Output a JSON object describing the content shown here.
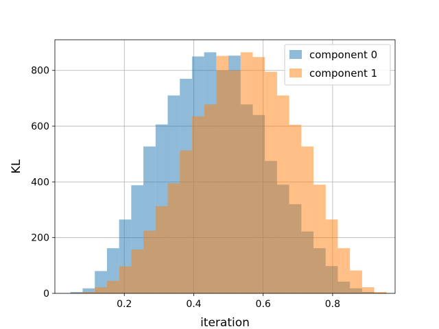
{
  "chart_data": {
    "type": "histogram",
    "title": "",
    "xlabel": "iteration",
    "ylabel": "KL",
    "xlim": [
      0.0,
      0.98
    ],
    "ylim": [
      0,
      910
    ],
    "xticks": [
      0.2,
      0.4,
      0.6,
      0.8
    ],
    "xtick_labels": [
      "0.2",
      "0.4",
      "0.6",
      "0.8"
    ],
    "yticks": [
      0,
      200,
      400,
      600,
      800
    ],
    "ytick_labels": [
      "0",
      "200",
      "400",
      "600",
      "800"
    ],
    "grid": true,
    "legend_position": "upper right",
    "series": [
      {
        "name": "component 0",
        "color": "#1f77b4",
        "alpha": 0.5,
        "bin_edges": [
          0.045,
          0.08,
          0.115,
          0.15,
          0.185,
          0.22,
          0.255,
          0.29,
          0.325,
          0.36,
          0.395,
          0.43,
          0.465,
          0.5,
          0.535,
          0.57,
          0.605,
          0.64,
          0.675,
          0.71,
          0.745,
          0.78,
          0.815,
          0.85,
          0.885,
          0.92,
          0.955
        ],
        "counts": [
          5,
          18,
          80,
          162,
          265,
          388,
          527,
          606,
          710,
          770,
          850,
          865,
          800,
          853,
          678,
          640,
          475,
          390,
          320,
          222,
          162,
          98,
          42,
          18,
          5,
          2
        ]
      },
      {
        "name": "component 1",
        "color": "#ff7f0e",
        "alpha": 0.5,
        "bin_edges": [
          0.045,
          0.08,
          0.115,
          0.15,
          0.185,
          0.22,
          0.255,
          0.29,
          0.325,
          0.36,
          0.395,
          0.43,
          0.465,
          0.5,
          0.535,
          0.57,
          0.605,
          0.64,
          0.675,
          0.71,
          0.745,
          0.78,
          0.815,
          0.85,
          0.885,
          0.92,
          0.955
        ],
        "counts": [
          2,
          5,
          22,
          45,
          97,
          157,
          225,
          313,
          395,
          513,
          635,
          678,
          852,
          800,
          865,
          848,
          795,
          710,
          605,
          527,
          390,
          265,
          162,
          82,
          22,
          5
        ]
      }
    ]
  }
}
